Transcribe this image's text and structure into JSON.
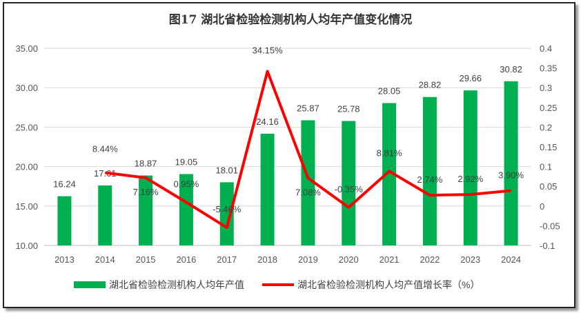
{
  "chart_data": {
    "type": "bar+line",
    "title": "图17 湖北省检验检测机构人均年产值变化情况",
    "categories": [
      "2013",
      "2014",
      "2015",
      "2016",
      "2017",
      "2018",
      "2019",
      "2020",
      "2021",
      "2022",
      "2023",
      "2024"
    ],
    "series": [
      {
        "name": "湖北省检验检测机构人均年产值",
        "type": "bar",
        "axis": "left",
        "color": "#00b050",
        "values": [
          16.24,
          17.61,
          18.87,
          19.05,
          18.01,
          24.16,
          25.87,
          25.78,
          28.05,
          28.82,
          29.66,
          30.82
        ],
        "labels": [
          "16.24",
          "17.61",
          "18.87",
          "19.05",
          "18.01",
          "24.16",
          "25.87",
          "25.78",
          "28.05",
          "28.82",
          "29.66",
          "30.82"
        ]
      },
      {
        "name": "湖北省检验检测机构人均产值增长率（%）",
        "type": "line",
        "axis": "right",
        "color": "#ff0000",
        "values": [
          null,
          0.0844,
          0.0716,
          0.0095,
          -0.0546,
          0.3415,
          0.0708,
          -0.0035,
          0.0881,
          0.0274,
          0.0292,
          0.039
        ],
        "labels": [
          "",
          "8.44%",
          "7.16%",
          "0.95%",
          "-5.46%",
          "34.15%",
          "7.08%",
          "-0.35%",
          "8.81%",
          "2.74%",
          "2.92%",
          "3.90%"
        ]
      }
    ],
    "y_left": {
      "range": [
        10,
        35
      ],
      "ticks": [
        "10.00",
        "15.00",
        "20.00",
        "25.00",
        "30.00",
        "35.00"
      ]
    },
    "y_right": {
      "range": [
        -0.1,
        0.4
      ],
      "ticks": [
        "-0.1",
        "-0.05",
        "0",
        "0.05",
        "0.1",
        "0.15",
        "0.2",
        "0.25",
        "0.3",
        "0.35",
        "0.4"
      ]
    },
    "grid": true,
    "legend": "bottom"
  }
}
